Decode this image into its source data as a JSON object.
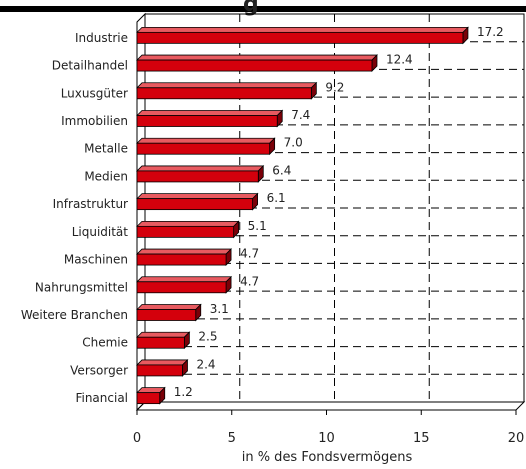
{
  "title_fragment": "g",
  "chart_data": {
    "type": "bar",
    "orientation": "horizontal",
    "title": "",
    "xlabel": "in % des Fondsvermögens",
    "ylabel": "",
    "xlim": [
      0,
      20
    ],
    "x_ticks": [
      0,
      5,
      10,
      15,
      20
    ],
    "grid": "vertical dashed lines at x ticks and horizontal dashed lines between categories",
    "bar_style": "3D",
    "categories": [
      "Industrie",
      "Detailhandel",
      "Luxusgüter",
      "Immobilien",
      "Metalle",
      "Medien",
      "Infrastruktur",
      "Liquidität",
      "Maschinen",
      "Nahrungsmittel",
      "Weitere Branchen",
      "Chemie",
      "Versorger",
      "Financial"
    ],
    "values": [
      17.2,
      12.4,
      9.2,
      7.4,
      7.0,
      6.4,
      6.1,
      5.1,
      4.7,
      4.7,
      3.1,
      2.5,
      2.4,
      1.2
    ],
    "value_labels": [
      "17.2",
      "12.4",
      "9.2",
      "7.4",
      "7.0",
      "6.4",
      "6.1",
      "5.1",
      "4.7",
      "4.7",
      "3.1",
      "2.5",
      "2.4",
      "1.2"
    ],
    "colors": {
      "bar_front": "#d4000c",
      "bar_top": "#e85a60",
      "bar_side": "#7a0008",
      "axis": "#000000",
      "grid": "#000000",
      "title_bar": "#000000"
    }
  }
}
